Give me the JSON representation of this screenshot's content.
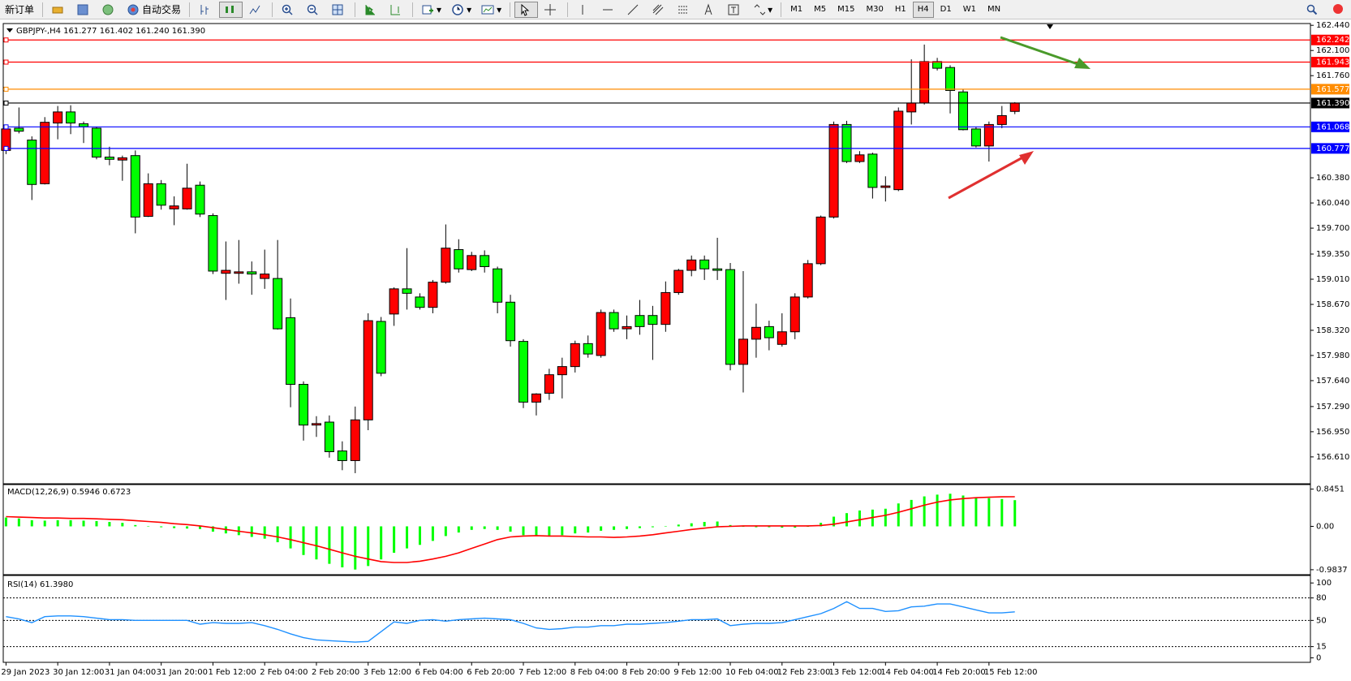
{
  "toolbar": {
    "new_order": "新订单",
    "auto_trading": "自动交易",
    "timeframes": [
      "M1",
      "M5",
      "M15",
      "M30",
      "H1",
      "H4",
      "D1",
      "W1",
      "MN"
    ]
  },
  "chart_data": [
    {
      "type": "candlestick",
      "title": "GBPJPY-,H4  161.277 161.402 161.240 161.390",
      "categories": [
        "29 Jan 2023",
        null,
        null,
        null,
        "30 Jan 12:00",
        null,
        null,
        null,
        "31 Jan 04:00",
        null,
        null,
        null,
        "31 Jan 20:00",
        null,
        null,
        null,
        "1 Feb 12:00",
        null,
        null,
        null,
        "2 Feb 04:00",
        null,
        null,
        null,
        "2 Feb 20:00",
        null,
        null,
        null,
        "3 Feb 12:00",
        null,
        null,
        null,
        "6 Feb 04:00",
        null,
        null,
        null,
        "6 Feb 20:00",
        null,
        null,
        null,
        "7 Feb 12:00",
        null,
        null,
        null,
        "8 Feb 04:00",
        null,
        null,
        null,
        "8 Feb 20:00",
        null,
        null,
        null,
        "9 Feb 12:00",
        null,
        null,
        null,
        "10 Feb 04:00",
        null,
        null,
        null,
        "12 Feb 23:00",
        null,
        null,
        null,
        "13 Feb 12:00",
        null,
        null,
        null,
        "14 Feb 04:00",
        null,
        null,
        null,
        "14 Feb 20:00",
        null,
        null,
        null,
        "15 Feb 12:00",
        null,
        null
      ],
      "open": [
        160.75,
        161.05,
        160.89,
        160.3,
        161.12,
        161.27,
        161.11,
        161.05,
        160.66,
        160.62,
        160.68,
        159.86,
        160.3,
        159.96,
        159.96,
        160.28,
        159.87,
        159.09,
        159.09,
        159.11,
        159.02,
        159.02,
        158.49,
        157.59,
        157.04,
        157.08,
        156.69,
        156.56,
        157.11,
        158.44,
        158.54,
        158.88,
        158.77,
        158.63,
        158.97,
        159.41,
        159.14,
        159.33,
        159.15,
        158.7,
        158.17,
        157.35,
        157.47,
        157.72,
        157.83,
        158.14,
        157.98,
        158.56,
        158.34,
        158.52,
        158.52,
        158.4,
        158.83,
        159.13,
        159.27,
        159.15,
        159.14,
        157.86,
        158.2,
        158.37,
        158.13,
        158.3,
        158.77,
        159.22,
        159.85,
        161.1,
        160.6,
        160.7,
        160.25,
        160.22,
        161.27,
        161.39,
        161.95,
        161.87,
        161.54,
        161.04,
        160.81,
        161.1,
        161.277
      ],
      "high": [
        161.1,
        161.33,
        160.94,
        161.2,
        161.35,
        161.36,
        161.14,
        161.07,
        160.8,
        160.68,
        160.75,
        160.44,
        160.35,
        160.13,
        160.57,
        160.33,
        159.9,
        159.52,
        159.54,
        159.25,
        159.41,
        159.54,
        158.75,
        157.63,
        157.16,
        157.17,
        156.82,
        157.29,
        158.55,
        158.5,
        158.9,
        159.43,
        158.82,
        159.0,
        159.75,
        159.55,
        159.38,
        159.4,
        159.18,
        158.8,
        158.2,
        157.47,
        157.8,
        157.95,
        158.18,
        158.25,
        158.6,
        158.6,
        158.52,
        158.73,
        158.65,
        158.98,
        159.15,
        159.33,
        159.33,
        159.57,
        159.23,
        159.12,
        158.68,
        158.45,
        158.55,
        158.82,
        159.27,
        159.87,
        161.14,
        161.15,
        160.74,
        160.72,
        160.4,
        161.33,
        161.98,
        162.18,
        162.0,
        161.9,
        161.58,
        161.07,
        161.14,
        161.35,
        161.402
      ],
      "low": [
        160.7,
        160.98,
        160.08,
        160.29,
        160.9,
        160.97,
        160.85,
        160.63,
        160.55,
        160.34,
        159.63,
        159.85,
        159.95,
        159.74,
        159.95,
        159.85,
        159.08,
        158.73,
        158.95,
        158.8,
        158.88,
        158.33,
        157.28,
        156.83,
        156.88,
        156.6,
        156.43,
        156.39,
        156.97,
        157.7,
        158.38,
        158.6,
        158.6,
        158.55,
        158.95,
        159.1,
        159.12,
        159.1,
        158.55,
        158.1,
        157.27,
        157.17,
        157.38,
        157.4,
        157.75,
        157.95,
        157.95,
        158.3,
        158.2,
        158.26,
        157.92,
        158.3,
        158.8,
        159.05,
        159.0,
        159.0,
        157.78,
        157.48,
        157.95,
        158.05,
        158.1,
        158.2,
        158.75,
        159.2,
        159.83,
        160.58,
        160.58,
        160.1,
        160.06,
        160.2,
        161.1,
        161.37,
        161.83,
        161.25,
        161.02,
        160.79,
        160.6,
        161.05,
        161.24
      ],
      "close": [
        161.04,
        161.01,
        160.29,
        161.13,
        161.27,
        161.12,
        161.07,
        160.66,
        160.63,
        160.65,
        159.85,
        160.3,
        160.01,
        160.0,
        160.24,
        159.89,
        159.12,
        159.13,
        159.11,
        159.08,
        159.08,
        158.34,
        157.59,
        157.04,
        157.06,
        156.68,
        156.56,
        157.11,
        158.45,
        157.74,
        158.88,
        158.82,
        158.63,
        158.97,
        159.43,
        159.15,
        159.33,
        159.18,
        158.7,
        158.18,
        157.35,
        157.46,
        157.72,
        157.83,
        158.14,
        158.0,
        158.56,
        158.34,
        158.37,
        158.37,
        158.4,
        158.83,
        159.13,
        159.27,
        159.15,
        159.13,
        157.86,
        158.2,
        158.36,
        158.22,
        158.3,
        158.77,
        159.22,
        159.85,
        161.1,
        160.6,
        160.69,
        160.25,
        160.27,
        161.28,
        161.39,
        161.95,
        161.86,
        161.56,
        161.03,
        160.81,
        161.1,
        161.22,
        161.39
      ],
      "up_color": "#ff0000",
      "down_color": "#00ff00",
      "ylim": [
        156.247,
        162.464
      ],
      "yticks": [
        {
          "value": 162.44,
          "label": "162.440"
        },
        {
          "value": 162.1,
          "label": "162.100"
        },
        {
          "value": 161.76,
          "label": "161.760"
        },
        {
          "value": 160.38,
          "label": "160.380"
        },
        {
          "value": 160.04,
          "label": "160.040"
        },
        {
          "value": 159.7,
          "label": "159.700"
        },
        {
          "value": 159.35,
          "label": "159.350"
        },
        {
          "value": 159.01,
          "label": "159.010"
        },
        {
          "value": 158.67,
          "label": "158.670"
        },
        {
          "value": 158.32,
          "label": "158.320"
        },
        {
          "value": 157.98,
          "label": "157.980"
        },
        {
          "value": 157.64,
          "label": "157.640"
        },
        {
          "value": 157.29,
          "label": "157.290"
        },
        {
          "value": 156.95,
          "label": "156.950"
        },
        {
          "value": 156.61,
          "label": "156.610"
        }
      ],
      "levels": [
        {
          "value": 162.242,
          "label": "162.242",
          "color": "#ff0000"
        },
        {
          "value": 161.943,
          "label": "161.943",
          "color": "#ff0000"
        },
        {
          "value": 161.577,
          "label": "161.577",
          "color": "#ff8c00"
        },
        {
          "value": 161.39,
          "label": "161.390",
          "color": "#000000"
        },
        {
          "value": 161.068,
          "label": "161.068",
          "color": "#0000ff"
        },
        {
          "value": 160.777,
          "label": "160.777",
          "color": "#0000ff"
        }
      ]
    },
    {
      "type": "macd",
      "title": "MACD(12,26,9) 0.5946 0.6723",
      "histogram": {
        "color": "#00ff00",
        "values": [
          0.2,
          0.18,
          0.14,
          0.13,
          0.14,
          0.14,
          0.13,
          0.12,
          0.1,
          0.08,
          0.03,
          0.0,
          -0.02,
          -0.04,
          -0.05,
          -0.06,
          -0.12,
          -0.16,
          -0.2,
          -0.24,
          -0.28,
          -0.36,
          -0.5,
          -0.65,
          -0.75,
          -0.85,
          -0.93,
          -0.98,
          -0.9,
          -0.75,
          -0.6,
          -0.5,
          -0.42,
          -0.33,
          -0.22,
          -0.14,
          -0.08,
          -0.06,
          -0.08,
          -0.12,
          -0.2,
          -0.22,
          -0.22,
          -0.2,
          -0.16,
          -0.14,
          -0.1,
          -0.08,
          -0.06,
          -0.04,
          -0.02,
          0.0,
          0.04,
          0.07,
          0.1,
          0.11,
          0.03,
          -0.01,
          -0.02,
          -0.02,
          -0.03,
          -0.03,
          0.0,
          0.08,
          0.22,
          0.3,
          0.36,
          0.38,
          0.4,
          0.52,
          0.6,
          0.68,
          0.72,
          0.74,
          0.7,
          0.66,
          0.64,
          0.62,
          0.5946
        ]
      },
      "signal": {
        "color": "#ff0000",
        "values": [
          0.22,
          0.21,
          0.2,
          0.19,
          0.19,
          0.18,
          0.18,
          0.17,
          0.16,
          0.15,
          0.13,
          0.11,
          0.09,
          0.06,
          0.04,
          0.01,
          -0.03,
          -0.07,
          -0.11,
          -0.15,
          -0.19,
          -0.24,
          -0.3,
          -0.37,
          -0.44,
          -0.52,
          -0.6,
          -0.68,
          -0.74,
          -0.8,
          -0.82,
          -0.82,
          -0.79,
          -0.74,
          -0.68,
          -0.6,
          -0.5,
          -0.4,
          -0.3,
          -0.24,
          -0.22,
          -0.21,
          -0.22,
          -0.22,
          -0.23,
          -0.24,
          -0.24,
          -0.25,
          -0.24,
          -0.22,
          -0.19,
          -0.15,
          -0.11,
          -0.07,
          -0.04,
          -0.01,
          0.0,
          0.01,
          0.01,
          0.01,
          0.01,
          0.01,
          0.01,
          0.02,
          0.05,
          0.1,
          0.15,
          0.2,
          0.25,
          0.32,
          0.4,
          0.48,
          0.55,
          0.6,
          0.63,
          0.65,
          0.66,
          0.67,
          0.6723
        ]
      },
      "ylim": [
        -1.096,
        0.948
      ],
      "yticks": [
        0.8451,
        {
          "value": 0,
          "label": "0.00"
        },
        -0.9837
      ]
    },
    {
      "type": "line",
      "title": "RSI(14) 61.3980",
      "color": "#1e90ff",
      "values": [
        55,
        52,
        47,
        55,
        56,
        56,
        55,
        53,
        51,
        51,
        50,
        50,
        50,
        50,
        50,
        45,
        47,
        46,
        46,
        47,
        43,
        38,
        32,
        27,
        24,
        23,
        22,
        21,
        22,
        35,
        48,
        46,
        50,
        51,
        49,
        51,
        52,
        53,
        52,
        51,
        46,
        40,
        38,
        39,
        41,
        41,
        43,
        43,
        45,
        45,
        46,
        47,
        49,
        51,
        51,
        52,
        43,
        45,
        46,
        46,
        47,
        51,
        55,
        59,
        66,
        75,
        66,
        66,
        62,
        63,
        68,
        69,
        72,
        72,
        68,
        64,
        60,
        60,
        61.398
      ],
      "ylim": [
        -6,
        110
      ],
      "yticks": [
        100,
        80,
        50,
        15,
        0
      ],
      "levels": [
        80,
        50,
        15
      ]
    }
  ]
}
